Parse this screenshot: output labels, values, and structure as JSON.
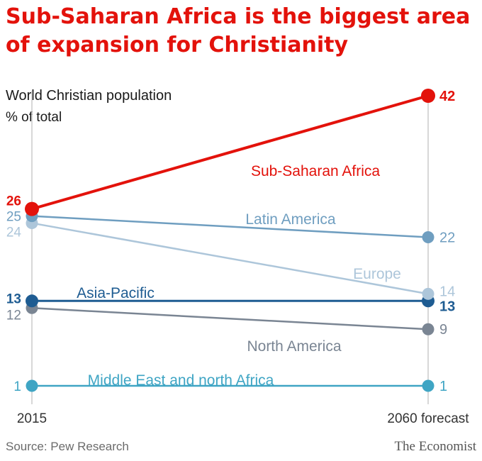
{
  "chart_data": {
    "type": "line",
    "title": "Sub-Saharan Africa is the biggest area of expansion for Christianity",
    "subtitle": "World Christian population",
    "ylabel": "% of total",
    "categories": [
      "2015",
      "2060 forecast"
    ],
    "ylim": [
      0,
      42
    ],
    "grid": false,
    "legend": "inline",
    "series": [
      {
        "name": "Sub-Saharan Africa",
        "values": [
          26,
          42
        ],
        "labels": [
          "26",
          "42"
        ],
        "color": "#e3120b"
      },
      {
        "name": "Latin America",
        "values": [
          25,
          22
        ],
        "labels": [
          "25",
          "22"
        ],
        "color": "#6f9ec0"
      },
      {
        "name": "Europe",
        "values": [
          24,
          14
        ],
        "labels": [
          "24",
          "14"
        ],
        "color": "#adc6da"
      },
      {
        "name": "Asia-Pacific",
        "values": [
          13,
          13
        ],
        "labels": [
          "13",
          "13"
        ],
        "color": "#1e5c92"
      },
      {
        "name": "North America",
        "values": [
          12,
          9
        ],
        "labels": [
          "12",
          "9"
        ],
        "color": "#7a8593"
      },
      {
        "name": "Middle East and north Africa",
        "values": [
          1,
          1
        ],
        "labels": [
          "1",
          "1"
        ],
        "color": "#3fa5c4"
      }
    ],
    "source": "Source: Pew Research",
    "brand": "The Economist"
  }
}
